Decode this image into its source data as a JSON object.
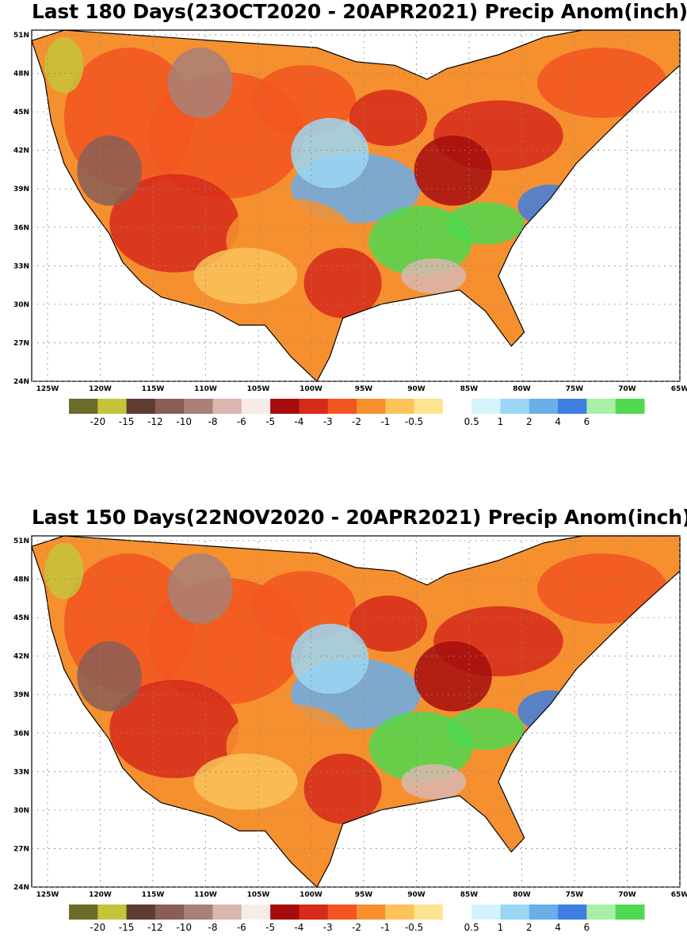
{
  "panels": [
    {
      "title": "Last 180 Days(23OCT2020 - 20APR2021) Precip Anom(inch)",
      "colorbar_labels": [
        "-20",
        "-15",
        "-12",
        "-10",
        "-8",
        "-6",
        "-5",
        "-4",
        "-3",
        "-2",
        "-1",
        "-0.5",
        "0.5",
        "1",
        "2",
        "4",
        "6"
      ]
    },
    {
      "title": "Last 150 Days(22NOV2020 - 20APR2021) Precip Anom(inch)",
      "colorbar_labels": [
        "-20",
        "-15",
        "-12",
        "-10",
        "-8",
        "-6",
        "-5",
        "-4",
        "-3",
        "-2",
        "-1",
        "-0.5",
        "0.5",
        "1",
        "2",
        "4",
        "6"
      ]
    }
  ],
  "lat_labels": [
    "51N",
    "48N",
    "45N",
    "42N",
    "39N",
    "36N",
    "33N",
    "30N",
    "27N",
    "24N"
  ],
  "lon_labels": [
    "125W",
    "120W",
    "115W",
    "110W",
    "105W",
    "100W",
    "95W",
    "90W",
    "85W",
    "80W",
    "75W",
    "70W",
    "65W"
  ],
  "colorbar_colors": [
    "#6b6b2a",
    "#c4c43a",
    "#5e3b33",
    "#8a5e55",
    "#a88078",
    "#d9b7b0",
    "#f7ece8",
    "#a50d0d",
    "#d62a1a",
    "#f2551f",
    "#f6902f",
    "#fbc35a",
    "#fde590",
    "#ffffff",
    "#d3f4fb",
    "#9bd7f5",
    "#6aaee8",
    "#3e7fe0",
    "#a8f0a8",
    "#4fd94f"
  ],
  "legend_note": "Precip Anom(inch)"
}
